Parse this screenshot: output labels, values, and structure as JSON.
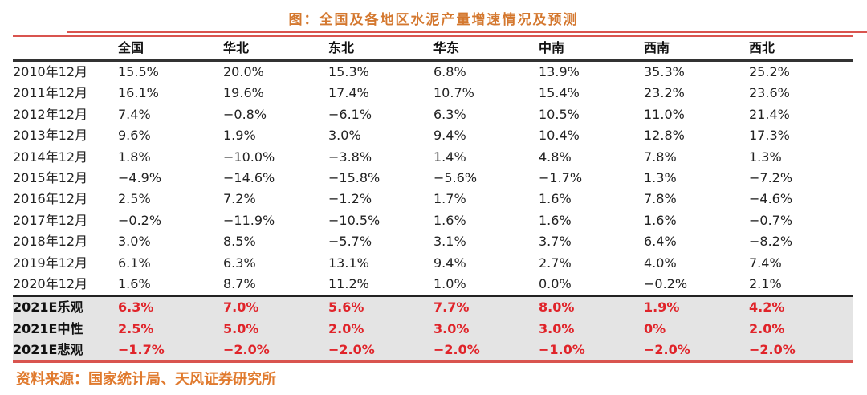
{
  "title": "图：全国及各地区水泥产量增速情况及预测",
  "source": "资料来源：国家统计局、天风证券研究所",
  "colors": {
    "title": "#d4782f",
    "rule": "#d9544f",
    "forecast_value": "#e0242a",
    "forecast_bg": "#e4e4e4",
    "source": "#e07a2e"
  },
  "table": {
    "columns": [
      "",
      "全国",
      "华北",
      "东北",
      "华东",
      "中南",
      "西南",
      "西北"
    ],
    "history": [
      {
        "label": "2010年12月",
        "values": [
          "15.5%",
          "20.0%",
          "15.3%",
          "6.8%",
          "13.9%",
          "35.3%",
          "25.2%"
        ]
      },
      {
        "label": "2011年12月",
        "values": [
          "16.1%",
          "19.6%",
          "17.4%",
          "10.7%",
          "15.4%",
          "23.2%",
          "23.6%"
        ]
      },
      {
        "label": "2012年12月",
        "values": [
          "7.4%",
          "−0.8%",
          "−6.1%",
          "6.3%",
          "10.5%",
          "11.0%",
          "21.4%"
        ]
      },
      {
        "label": "2013年12月",
        "values": [
          "9.6%",
          "1.9%",
          "3.0%",
          "9.4%",
          "10.4%",
          "12.8%",
          "17.3%"
        ]
      },
      {
        "label": "2014年12月",
        "values": [
          "1.8%",
          "−10.0%",
          "−3.8%",
          "1.4%",
          "4.8%",
          "7.8%",
          "1.3%"
        ]
      },
      {
        "label": "2015年12月",
        "values": [
          "−4.9%",
          "−14.6%",
          "−15.8%",
          "−5.6%",
          "−1.7%",
          "1.3%",
          "−7.2%"
        ]
      },
      {
        "label": "2016年12月",
        "values": [
          "2.5%",
          "7.2%",
          "−1.2%",
          "1.7%",
          "1.6%",
          "7.8%",
          "−4.6%"
        ]
      },
      {
        "label": "2017年12月",
        "values": [
          "−0.2%",
          "−11.9%",
          "−10.5%",
          "1.6%",
          "1.6%",
          "1.6%",
          "−0.7%"
        ]
      },
      {
        "label": "2018年12月",
        "values": [
          "3.0%",
          "8.5%",
          "−5.7%",
          "3.1%",
          "3.7%",
          "6.4%",
          "−8.2%"
        ]
      },
      {
        "label": "2019年12月",
        "values": [
          "6.1%",
          "6.3%",
          "13.1%",
          "9.4%",
          "2.7%",
          "4.0%",
          "7.4%"
        ]
      },
      {
        "label": "2020年12月",
        "values": [
          "1.6%",
          "8.7%",
          "11.2%",
          "1.0%",
          "0.0%",
          "−0.2%",
          "2.1%"
        ]
      }
    ],
    "forecast": [
      {
        "label": "2021E乐观",
        "values": [
          "6.3%",
          "7.0%",
          "5.6%",
          "7.7%",
          "8.0%",
          "1.9%",
          "4.2%"
        ]
      },
      {
        "label": "2021E中性",
        "values": [
          "2.5%",
          "5.0%",
          "2.0%",
          "3.0%",
          "3.0%",
          "0%",
          "2.0%"
        ]
      },
      {
        "label": "2021E悲观",
        "values": [
          "−1.7%",
          "−2.0%",
          "−2.0%",
          "−2.0%",
          "−1.0%",
          "−2.0%",
          "−2.0%"
        ]
      }
    ]
  }
}
